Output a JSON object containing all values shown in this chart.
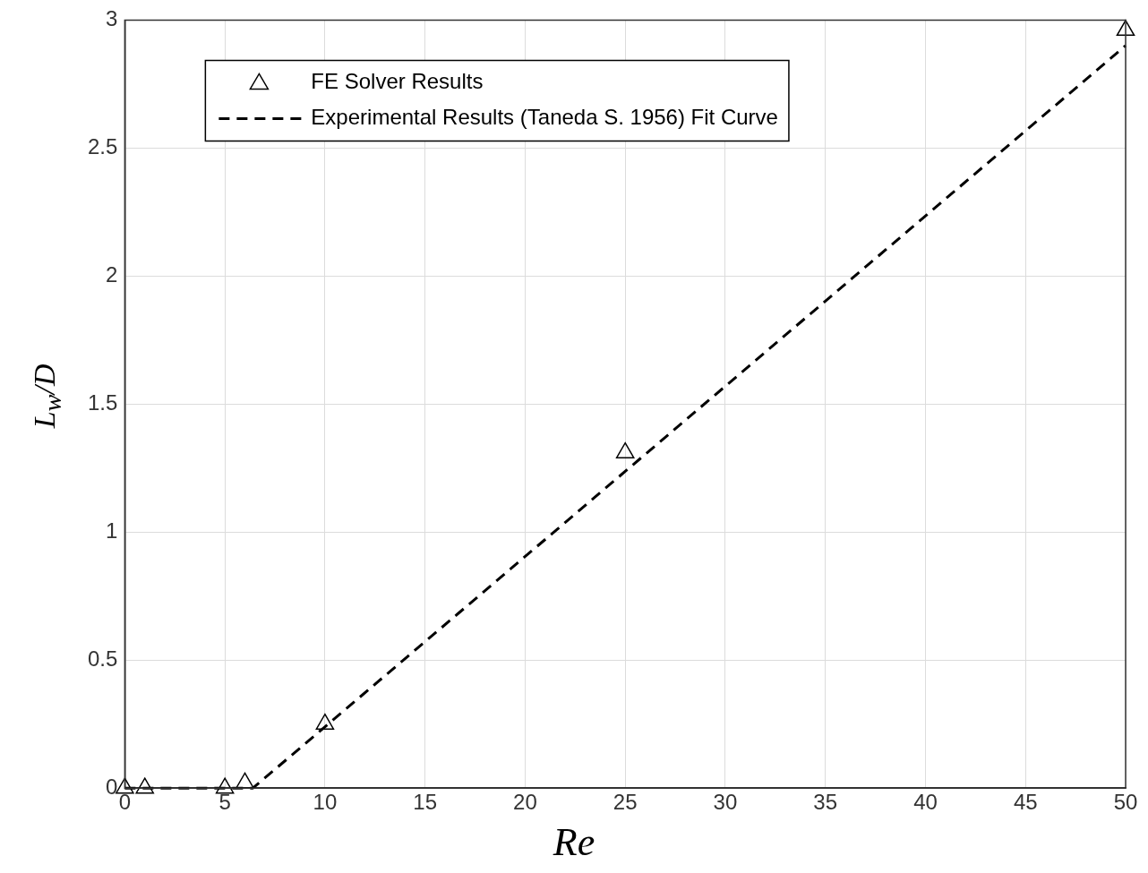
{
  "chart_data": {
    "type": "scatter",
    "xlabel": "Re",
    "ylabel": "L$_{w}$/D",
    "xlim": [
      0,
      50
    ],
    "xticks": [
      0,
      5,
      10,
      15,
      20,
      25,
      30,
      35,
      40,
      45,
      50
    ],
    "ylim": [
      0,
      3
    ],
    "yticks": [
      0,
      0.5,
      1,
      1.5,
      2,
      2.5,
      3
    ],
    "grid": true,
    "legend": "top left",
    "series": [
      {
        "name": "FE Solver Results",
        "color": "#000000",
        "marker": "triangle",
        "x": [
          0,
          1,
          5,
          6,
          10,
          25,
          50
        ],
        "values": [
          0,
          0,
          0,
          0.02,
          0.25,
          1.31,
          2.96
        ]
      },
      {
        "name": "Experimental Results (Taneda S. 1956) Fit Curve",
        "type": "line",
        "color": "#000000",
        "line_style": "dashed",
        "marker": "none",
        "x": [
          0,
          6.4,
          50
        ],
        "values": [
          0,
          0,
          2.9
        ]
      }
    ]
  }
}
